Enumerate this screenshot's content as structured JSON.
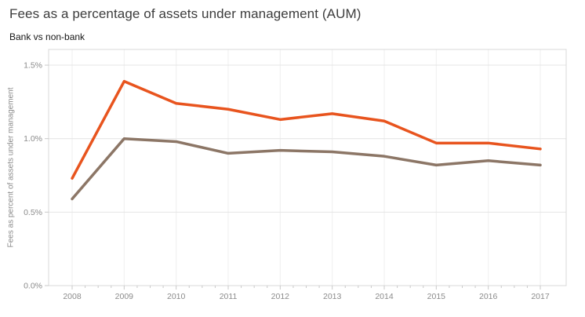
{
  "header": {
    "title": "Fees as a percentage of assets under management (AUM)",
    "subtitle": "Bank vs non-bank"
  },
  "chart_data": {
    "type": "line",
    "title": "Fees as a percentage of assets under management (AUM)",
    "subtitle": "Bank vs non-bank",
    "xlabel": "",
    "ylabel": "Fees as percent of assets under management",
    "x": [
      2008,
      2009,
      2010,
      2011,
      2012,
      2013,
      2014,
      2015,
      2016,
      2017
    ],
    "series": [
      {
        "name": "orange",
        "color": "#E8541E",
        "values": [
          0.73,
          1.39,
          1.24,
          1.2,
          1.13,
          1.17,
          1.12,
          0.97,
          0.97,
          0.93
        ]
      },
      {
        "name": "brown",
        "color": "#8C7666",
        "values": [
          0.59,
          1.0,
          0.98,
          0.9,
          0.92,
          0.91,
          0.88,
          0.82,
          0.85,
          0.82
        ]
      }
    ],
    "y_ticks": [
      "0.0%",
      "0.5%",
      "1.0%",
      "1.5%"
    ],
    "y_tick_values": [
      0,
      0.5,
      1.0,
      1.5
    ],
    "ylim": [
      0,
      1.607
    ],
    "grid": true,
    "legend": "none"
  },
  "style": {
    "accent_orange": "#E8541E",
    "accent_brown": "#8C7666",
    "tick_label_color": "#8b8b8b",
    "gridline_h_color": "#e4e4e4",
    "gridline_v_color": "#efefef",
    "border_color": "#d9d9d9",
    "tick_mark_color": "#c9c9c9"
  }
}
